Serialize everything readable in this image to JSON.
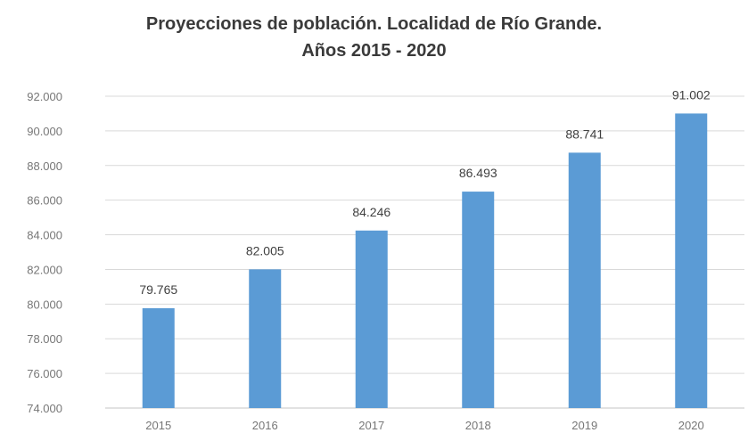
{
  "chart_data": {
    "type": "bar",
    "title": "Proyecciones de población. Localidad de Río Grande.",
    "subtitle": "Años 2015 - 2020",
    "categories": [
      "2015",
      "2016",
      "2017",
      "2018",
      "2019",
      "2020"
    ],
    "values": [
      79765,
      82005,
      84246,
      86493,
      88741,
      91002
    ],
    "value_labels": [
      "79.765",
      "82.005",
      "84.246",
      "86.493",
      "88.741",
      "91.002"
    ],
    "y_ticks": [
      "74.000",
      "76.000",
      "78.000",
      "80.000",
      "82.000",
      "84.000",
      "86.000",
      "88.000",
      "90.000",
      "92.000"
    ],
    "ylim": [
      74000,
      92000
    ],
    "xlabel": "",
    "ylabel": "",
    "grid": true,
    "legend": "none",
    "bar_color": "#5b9bd5",
    "grid_color": "#d9d9d9"
  }
}
